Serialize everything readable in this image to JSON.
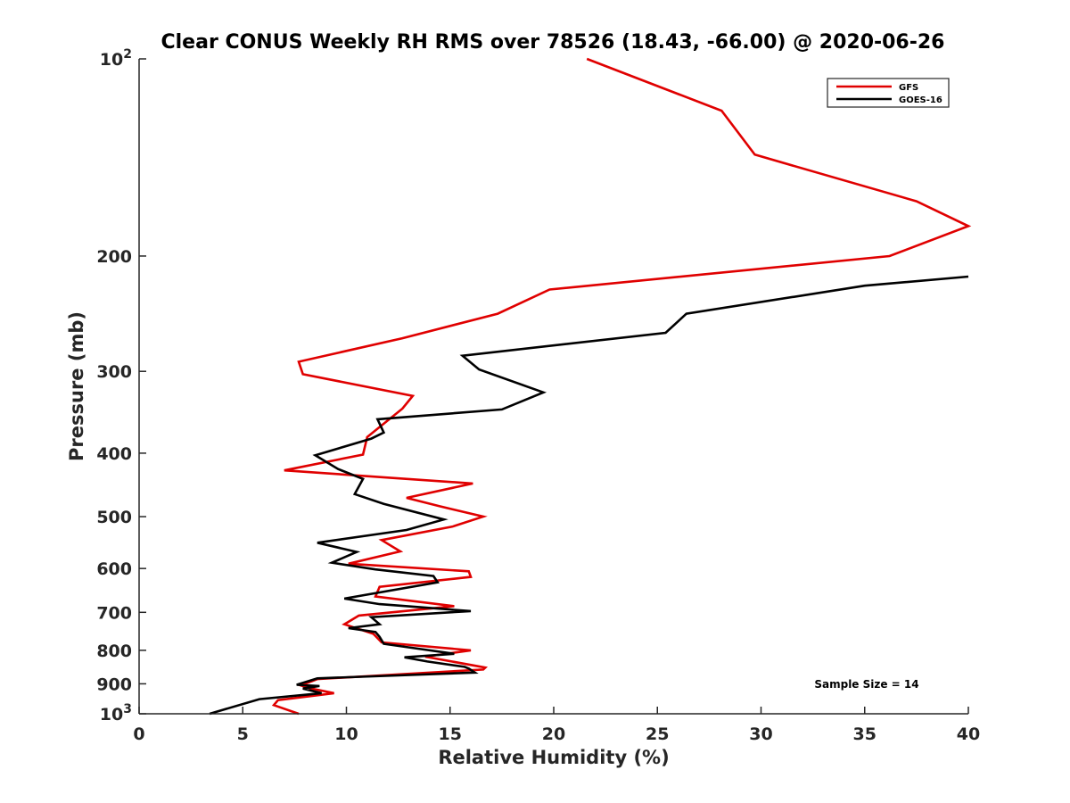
{
  "chart_data": {
    "type": "line",
    "title": "Clear CONUS Weekly RH RMS over 78526 (18.43, -66.00) @ 2020-06-26",
    "xlabel": "Relative Humidity (%)",
    "ylabel": "Pressure (mb)",
    "xlim": [
      0,
      40
    ],
    "ylim": [
      100,
      1000
    ],
    "y_scale": "log",
    "y_reversed": true,
    "x_ticks": [
      "0",
      "5",
      "10",
      "15",
      "20",
      "25",
      "30",
      "35",
      "40"
    ],
    "y_ticks": [
      {
        "value": 100,
        "base": "10",
        "exp": "2"
      },
      {
        "value": 200,
        "label": "200"
      },
      {
        "value": 300,
        "label": "300"
      },
      {
        "value": 400,
        "label": "400"
      },
      {
        "value": 500,
        "label": "500"
      },
      {
        "value": 600,
        "label": "600"
      },
      {
        "value": 700,
        "label": "700"
      },
      {
        "value": 800,
        "label": "800"
      },
      {
        "value": 900,
        "label": "900"
      },
      {
        "value": 1000,
        "base": "10",
        "exp": "3"
      }
    ],
    "grid": false,
    "legend_position": "top-right",
    "annotation": "Sample Size = 14",
    "series": [
      {
        "name": "GFS",
        "color": "#e00000",
        "x": [
          21.6,
          28.1,
          29.7,
          37.5,
          40.0,
          36.2,
          19.8,
          17.3,
          12.7,
          7.7,
          7.9,
          13.2,
          12.7,
          11.0,
          10.8,
          7.0,
          16.1,
          12.9,
          14.5,
          16.6,
          15.1,
          11.7,
          12.6,
          10.1,
          15.9,
          16.0,
          11.6,
          11.4,
          15.2,
          10.6,
          9.9,
          11.3,
          11.7,
          16.0,
          13.8,
          16.7,
          16.6,
          8.6,
          7.8,
          8.3,
          9.4,
          6.7,
          6.5,
          7.7
        ],
        "y": [
          100,
          120,
          140,
          165,
          180,
          200,
          225,
          245,
          267,
          290,
          303,
          327,
          342,
          378,
          402,
          425,
          445,
          468,
          482,
          500,
          518,
          543,
          565,
          590,
          606,
          618,
          640,
          662,
          685,
          708,
          730,
          755,
          778,
          800,
          818,
          850,
          856,
          885,
          905,
          915,
          930,
          953,
          970,
          1000
        ]
      },
      {
        "name": "GOES-16",
        "color": "#000000",
        "x": [
          40.0,
          35.0,
          26.4,
          25.4,
          15.6,
          16.4,
          19.5,
          17.5,
          11.5,
          11.8,
          11.2,
          8.5,
          9.6,
          10.8,
          10.4,
          11.8,
          14.7,
          12.9,
          8.6,
          10.5,
          9.3,
          11.4,
          14.2,
          14.4,
          9.9,
          11.6,
          16.0,
          11.2,
          11.6,
          10.1,
          11.4,
          11.6,
          11.8,
          15.2,
          12.8,
          13.9,
          15.7,
          15.9,
          16.2,
          8.6,
          7.6,
          8.7,
          7.9,
          8.8,
          5.8,
          3.4
        ],
        "y": [
          215,
          222,
          245,
          262,
          284,
          298,
          323,
          343,
          355,
          372,
          380,
          403,
          423,
          438,
          462,
          478,
          505,
          524,
          548,
          566,
          588,
          602,
          616,
          630,
          667,
          680,
          697,
          712,
          730,
          740,
          750,
          763,
          782,
          810,
          820,
          832,
          848,
          853,
          865,
          883,
          903,
          907,
          915,
          930,
          950,
          1000
        ]
      }
    ]
  }
}
